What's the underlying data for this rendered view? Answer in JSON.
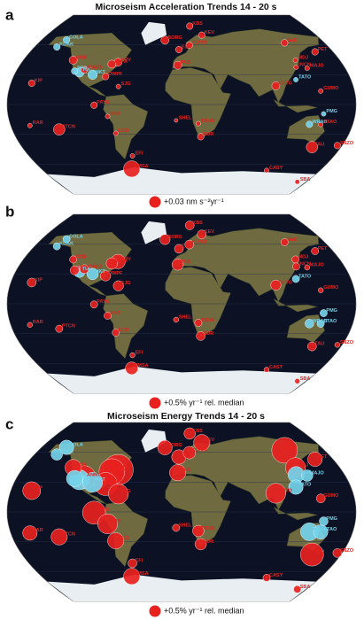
{
  "positive_color": "#e8211f",
  "negative_color": "#74d2ea",
  "stations": [
    {
      "name": "COLA",
      "lon": -148,
      "lat": 65
    },
    {
      "name": "KDAK",
      "lon": -152.6,
      "lat": 57.8
    },
    {
      "name": "COR",
      "lon": -123.3,
      "lat": 44.6
    },
    {
      "name": "PFO",
      "lon": -116.5,
      "lat": 33.6
    },
    {
      "name": "TUC",
      "lon": -110.8,
      "lat": 32.3
    },
    {
      "name": "ANMO",
      "lon": -106.5,
      "lat": 34.9
    },
    {
      "name": "HKT",
      "lon": -95.8,
      "lat": 29.96
    },
    {
      "name": "HRV",
      "lon": -71.6,
      "lat": 42.5
    },
    {
      "name": "SSPA",
      "lon": -77.9,
      "lat": 40.6
    },
    {
      "name": "DWPF",
      "lon": -81.4,
      "lat": 28.1
    },
    {
      "name": "SJG",
      "lon": -66.2,
      "lat": 18.1
    },
    {
      "name": "KIP",
      "lon": -158,
      "lat": 21.4
    },
    {
      "name": "PAYG",
      "lon": -90.3,
      "lat": -0.7
    },
    {
      "name": "NNA",
      "lon": -76.8,
      "lat": -12
    },
    {
      "name": "LCO",
      "lon": -70.7,
      "lat": -29
    },
    {
      "name": "RAR",
      "lon": -159.8,
      "lat": -21.2
    },
    {
      "name": "PTCN",
      "lon": -130.1,
      "lat": -25.1
    },
    {
      "name": "PMSA",
      "lon": -64.05,
      "lat": -64.8
    },
    {
      "name": "EFI",
      "lon": -57.9,
      "lat": -51.7
    },
    {
      "name": "BORG",
      "lon": -21.3,
      "lat": 64.7
    },
    {
      "name": "KBS",
      "lon": 11.9,
      "lat": 78.9
    },
    {
      "name": "ESK",
      "lon": -3.2,
      "lat": 55.3
    },
    {
      "name": "KONO",
      "lon": 9.6,
      "lat": 59.6
    },
    {
      "name": "KEV",
      "lon": 27,
      "lat": 69.8
    },
    {
      "name": "PAB",
      "lon": -4.3,
      "lat": 39.5
    },
    {
      "name": "SHEL",
      "lon": -5.7,
      "lat": -16
    },
    {
      "name": "TSUM",
      "lon": 17.6,
      "lat": -19.2
    },
    {
      "name": "SUR",
      "lon": 20.8,
      "lat": -32.4
    },
    {
      "name": "YAK",
      "lon": 129.7,
      "lat": 62
    },
    {
      "name": "PET",
      "lon": 158.6,
      "lat": 53
    },
    {
      "name": "MDJ",
      "lon": 129.6,
      "lat": 44.6
    },
    {
      "name": "MAJO",
      "lon": 138.2,
      "lat": 36.5
    },
    {
      "name": "INCN",
      "lon": 126.6,
      "lat": 37.5
    },
    {
      "name": "TATO",
      "lon": 121.5,
      "lat": 25
    },
    {
      "name": "CHTO",
      "lon": 98.9,
      "lat": 18.8
    },
    {
      "name": "GUMO",
      "lon": 144.9,
      "lat": 13.6
    },
    {
      "name": "PMG",
      "lon": 147.2,
      "lat": -9.4
    },
    {
      "name": "WRAB",
      "lon": 134.4,
      "lat": -19.9
    },
    {
      "name": "CTAO",
      "lon": 146.3,
      "lat": -20.1
    },
    {
      "name": "SNZO",
      "lon": 174.7,
      "lat": -41.3
    },
    {
      "name": "TAU",
      "lon": 147.3,
      "lat": -42.9
    },
    {
      "name": "CASY",
      "lon": 110.5,
      "lat": -66.3
    },
    {
      "name": "SBA",
      "lon": 166.8,
      "lat": -77.8
    }
  ],
  "panels": [
    {
      "letter": "a",
      "title": "Microseism Acceleration Trends 14 - 20 s",
      "legend": {
        "value": 0.03,
        "label": "+0.03 nm s⁻²yr⁻¹"
      },
      "values": [
        -0.01,
        -0.01,
        0.015,
        -0.01,
        -0.02,
        0.01,
        -0.02,
        0.015,
        0.015,
        0.01,
        0.005,
        0.01,
        0.01,
        0.005,
        0.005,
        0.005,
        0.03,
        0.06,
        0.005,
        0.015,
        0.01,
        0.01,
        0.01,
        0.01,
        0.015,
        0.003,
        0.005,
        0.01,
        0.01,
        0.01,
        0.005,
        0.005,
        0.005,
        -0.005,
        0.015,
        0.005,
        -0.005,
        -0.01,
        0.005,
        0.01,
        0.03,
        0.005,
        0.005
      ]
    },
    {
      "letter": "b",
      "legend": {
        "value": 0.5,
        "label": "+0.5% yr⁻¹ rel. median"
      },
      "values": [
        -0.2,
        -0.2,
        0.2,
        0.3,
        -0.5,
        0.3,
        -0.5,
        0.8,
        0.5,
        0.4,
        0.4,
        0.3,
        0.2,
        0.2,
        0.2,
        0.1,
        0.2,
        0.6,
        0.1,
        0.4,
        0.3,
        0.3,
        0.3,
        0.3,
        0.5,
        0.1,
        0.2,
        0.3,
        0.2,
        0.2,
        0.2,
        0.1,
        0.2,
        -0.2,
        0.4,
        0.1,
        -0.2,
        -0.3,
        -0.2,
        0.1,
        0.3,
        0.1,
        0.1
      ]
    },
    {
      "letter": "c",
      "title": "Microseism Energy Trends 14 - 20 s",
      "legend": {
        "value": 0.5,
        "label": "+0.5% yr⁻¹ rel. median"
      },
      "values": [
        -0.8,
        -0.5,
        1.0,
        -1.0,
        -1.5,
        2.0,
        -1.5,
        3.5,
        2.5,
        2.0,
        1.5,
        1.2,
        2.0,
        1.5,
        1.0,
        0.8,
        1.0,
        1.0,
        0.3,
        0.8,
        0.5,
        0.8,
        0.6,
        1.0,
        1.0,
        0.2,
        0.5,
        0.5,
        2.5,
        0.8,
        1.5,
        -0.5,
        -1.0,
        -0.8,
        1.5,
        0.3,
        -0.3,
        -1.2,
        -0.8,
        0.3,
        2.0,
        0.2,
        0.2
      ]
    }
  ]
}
